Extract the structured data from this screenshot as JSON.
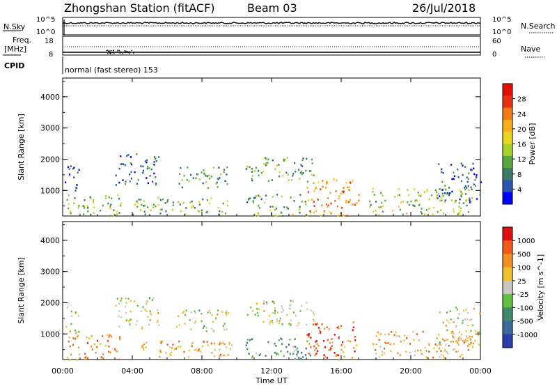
{
  "header": {
    "station": "Zhongshan Station (fitACF)",
    "beam": "Beam 03",
    "date": "26/Jul/2018"
  },
  "panels": {
    "nsky_label": "N.Sky",
    "nsky_top": "10^5",
    "nsky_bottom": "10^0",
    "nsearch_label": "N.Search",
    "nsearch_top": "10^5",
    "nsearch_bottom": "10^0",
    "freq_label": "Freq.",
    "freq_unit": "[MHz]",
    "freq_top": "18",
    "freq_bottom": "8",
    "nave_label": "Nave",
    "nave_top": "60",
    "nave_bottom": "0",
    "cpid_label": "CPID",
    "cpid_text": "normal (fast stereo) 153",
    "xlabel": "Time UT"
  },
  "chart_data": [
    {
      "type": "heatmap",
      "name": "power",
      "ylabel": "Slant Range [km]",
      "colorbar_label": "Power [dB]",
      "xticks": [
        "00:00",
        "04:00",
        "08:00",
        "12:00",
        "16:00",
        "20:00",
        "00:00"
      ],
      "xlim_hours": [
        0,
        24
      ],
      "yticks": [
        1000,
        2000,
        3000,
        4000
      ],
      "ylim": [
        180,
        4600
      ],
      "colorbar_ticks": [
        "4",
        "8",
        "12",
        "16",
        "20",
        "24",
        "28"
      ],
      "colorbar_range": [
        0,
        32
      ],
      "colorscale": [
        "#0000ff",
        "#2a55b0",
        "#3d7a6a",
        "#5aa83c",
        "#a6d22a",
        "#e8d71c",
        "#f8ad1a",
        "#f47a18",
        "#e8320f",
        "#e50f05"
      ],
      "regions": [
        {
          "t": [
            0.2,
            3.4
          ],
          "r": [
            200,
            900
          ],
          "level": 0.4
        },
        {
          "t": [
            0.1,
            0.9
          ],
          "r": [
            1000,
            1900
          ],
          "level": 0.15
        },
        {
          "t": [
            3.0,
            5.5
          ],
          "r": [
            1200,
            2200
          ],
          "level": 0.15
        },
        {
          "t": [
            4.0,
            9.8
          ],
          "r": [
            250,
            800
          ],
          "level": 0.4
        },
        {
          "t": [
            6.5,
            9.5
          ],
          "r": [
            1100,
            1800
          ],
          "level": 0.3
        },
        {
          "t": [
            10.5,
            14.5
          ],
          "r": [
            1300,
            2100
          ],
          "level": 0.35
        },
        {
          "t": [
            10.5,
            14.2
          ],
          "r": [
            200,
            900
          ],
          "level": 0.35
        },
        {
          "t": [
            14.0,
            17.0
          ],
          "r": [
            200,
            1400
          ],
          "level": 0.7
        },
        {
          "t": [
            17.5,
            23.5
          ],
          "r": [
            250,
            1100
          ],
          "level": 0.45
        },
        {
          "t": [
            21.5,
            24.0
          ],
          "r": [
            600,
            1900
          ],
          "level": 0.2
        }
      ]
    },
    {
      "type": "heatmap",
      "name": "velocity",
      "ylabel": "Slant Range [km]",
      "colorbar_label": "Velocity [m s^-1]",
      "xticks": [
        "00:00",
        "04:00",
        "08:00",
        "12:00",
        "16:00",
        "20:00",
        "00:00"
      ],
      "xlim_hours": [
        0,
        24
      ],
      "yticks": [
        1000,
        2000,
        3000,
        4000
      ],
      "ylim": [
        180,
        4600
      ],
      "colorbar_ticks": [
        "1000",
        "500",
        "100",
        "25",
        "-25",
        "-100",
        "-500",
        "-1000"
      ],
      "colorscale": [
        "#2a3da8",
        "#3a6b9a",
        "#3f8a6a",
        "#60c040",
        "#c8c8c0",
        "#f0c030",
        "#f59020",
        "#f05a15",
        "#e01010"
      ],
      "regions": [
        {
          "t": [
            0.2,
            3.4
          ],
          "r": [
            200,
            1000
          ],
          "level": 0.72
        },
        {
          "t": [
            0.1,
            0.9
          ],
          "r": [
            1000,
            1900
          ],
          "level": 0.5
        },
        {
          "t": [
            3.0,
            5.5
          ],
          "r": [
            1200,
            2200
          ],
          "level": 0.5
        },
        {
          "t": [
            4.0,
            9.8
          ],
          "r": [
            250,
            800
          ],
          "level": 0.7
        },
        {
          "t": [
            6.5,
            9.5
          ],
          "r": [
            1100,
            1800
          ],
          "level": 0.5
        },
        {
          "t": [
            10.5,
            14.5
          ],
          "r": [
            1300,
            2100
          ],
          "level": 0.5
        },
        {
          "t": [
            10.5,
            14.2
          ],
          "r": [
            200,
            900
          ],
          "level": 0.3
        },
        {
          "t": [
            14.0,
            17.0
          ],
          "r": [
            200,
            1400
          ],
          "level": 0.8
        },
        {
          "t": [
            17.5,
            23.5
          ],
          "r": [
            250,
            1100
          ],
          "level": 0.65
        },
        {
          "t": [
            21.5,
            24.0
          ],
          "r": [
            600,
            1900
          ],
          "level": 0.55
        }
      ]
    }
  ]
}
